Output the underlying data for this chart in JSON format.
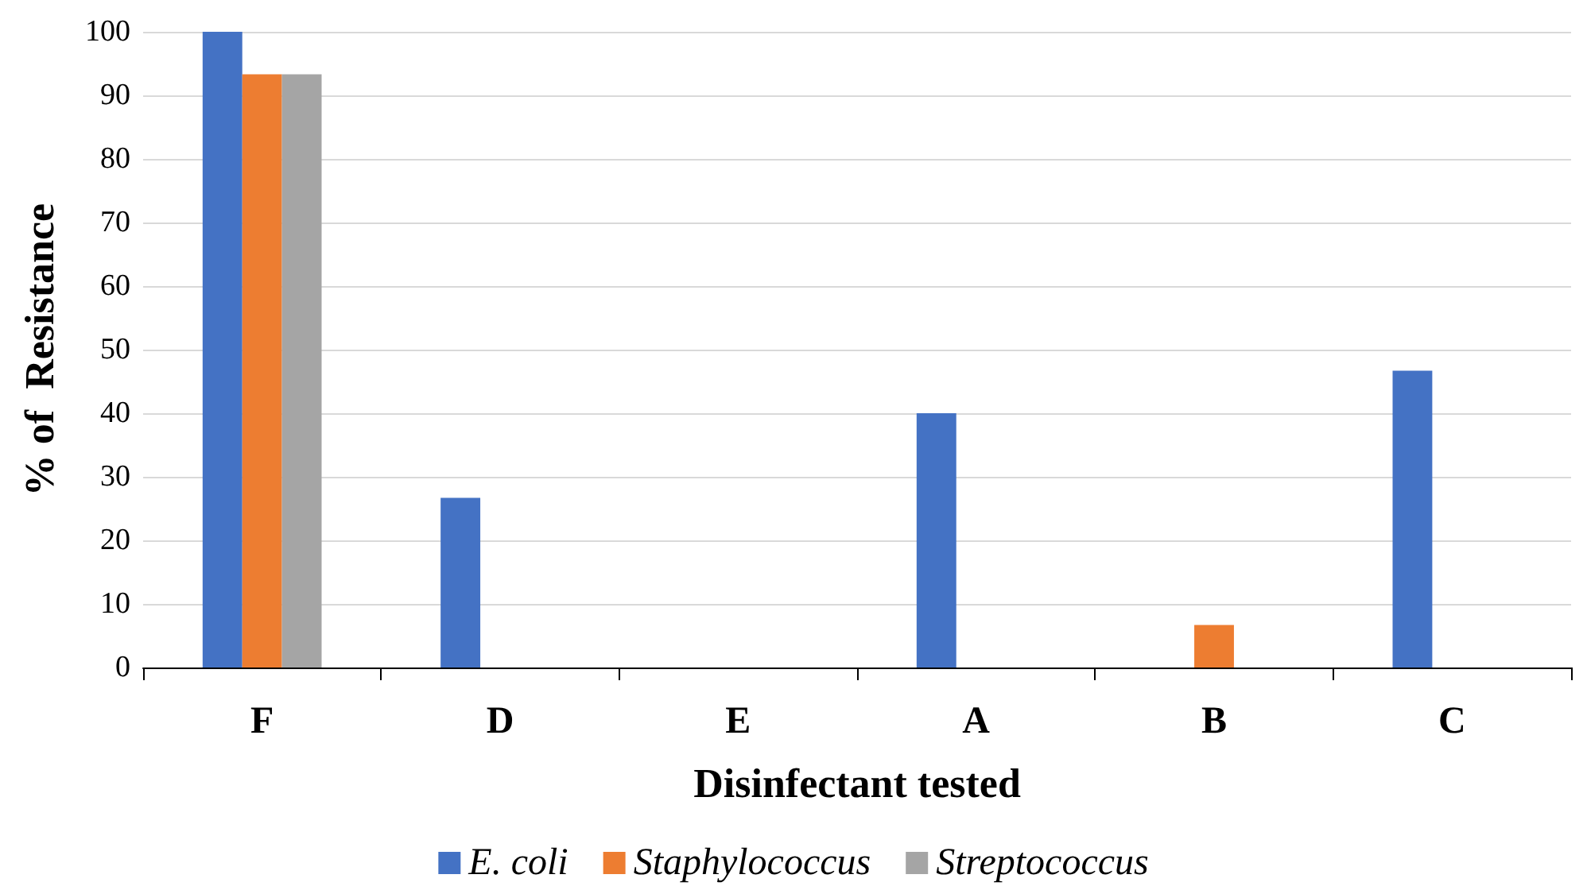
{
  "chart_data": {
    "type": "bar",
    "xlabel": "Disinfectant tested",
    "ylabel": "% of  Resistance",
    "categories": [
      "F",
      "D",
      "E",
      "A",
      "B",
      "C"
    ],
    "series": [
      {
        "name": "E. coli",
        "color": "#4472c4",
        "values": [
          100,
          26.7,
          0,
          40,
          0,
          46.7
        ]
      },
      {
        "name": "Staphylococcus",
        "color": "#ed7d31",
        "values": [
          93.3,
          0,
          0,
          0,
          6.7,
          0
        ]
      },
      {
        "name": "Streptococcus",
        "color": "#a5a5a5",
        "values": [
          93.3,
          0,
          0,
          0,
          0,
          0
        ]
      }
    ],
    "ylim": [
      0,
      100
    ],
    "yticks": [
      0,
      10,
      20,
      30,
      40,
      50,
      60,
      70,
      80,
      90,
      100
    ],
    "grid": "y",
    "legend": "bottom"
  }
}
